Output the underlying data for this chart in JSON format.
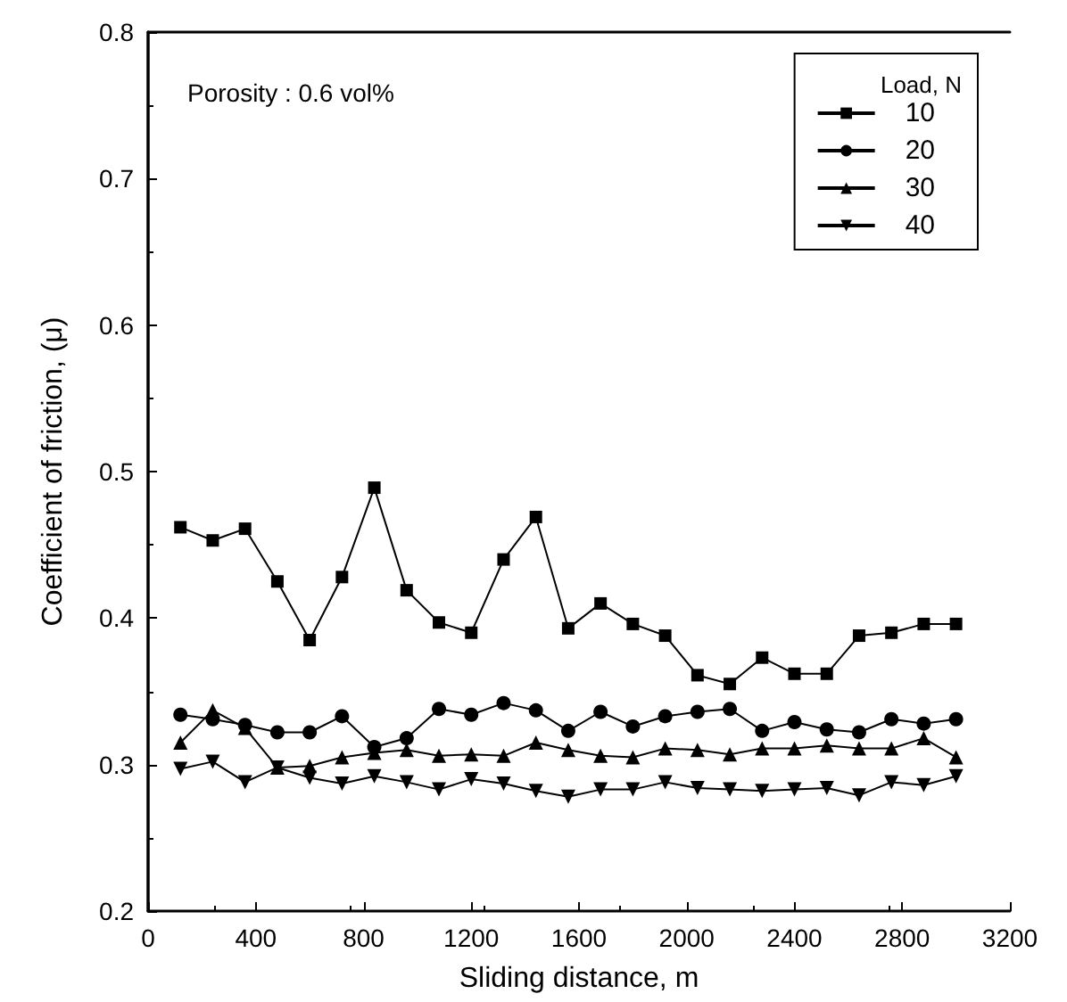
{
  "chart_data": {
    "type": "line",
    "xlabel": "Sliding distance, m",
    "ylabel": "Coefficient of friction, (μ)",
    "legend_title": "Load, N",
    "annotations": [
      "Porosity : 0.6 vol%"
    ],
    "x": [
      120,
      240,
      360,
      480,
      600,
      720,
      840,
      960,
      1080,
      1200,
      1320,
      1440,
      1560,
      1680,
      1800,
      1920,
      2040,
      2160,
      2280,
      2400,
      2520,
      2640,
      2760,
      2880,
      3000
    ],
    "series": [
      {
        "name": "10",
        "color": "#000000",
        "marker": "square",
        "values": [
          0.462,
          0.453,
          0.461,
          0.425,
          0.385,
          0.428,
          0.489,
          0.419,
          0.397,
          0.39,
          0.44,
          0.469,
          0.393,
          0.41,
          0.396,
          0.388,
          0.361,
          0.355,
          0.373,
          0.362,
          0.362,
          0.388,
          0.39,
          0.396,
          0.396
        ]
      },
      {
        "name": "20",
        "color": "#000000",
        "marker": "circle",
        "values": [
          0.334,
          0.331,
          0.327,
          0.322,
          0.322,
          0.333,
          0.312,
          0.318,
          0.338,
          0.334,
          0.342,
          0.337,
          0.323,
          0.336,
          0.326,
          0.333,
          0.336,
          0.338,
          0.323,
          0.329,
          0.324,
          0.322,
          0.331,
          0.328,
          0.331
        ]
      },
      {
        "name": "30",
        "color": "#000000",
        "marker": "triangle",
        "values": [
          0.315,
          0.337,
          0.325,
          0.298,
          0.299,
          0.305,
          0.308,
          0.31,
          0.306,
          0.307,
          0.306,
          0.315,
          0.31,
          0.306,
          0.305,
          0.311,
          0.31,
          0.307,
          0.311,
          0.311,
          0.313,
          0.311,
          0.311,
          0.318,
          0.305
        ]
      },
      {
        "name": "40",
        "color": "#000000",
        "marker": "triangle-down",
        "values": [
          0.297,
          0.302,
          0.288,
          0.298,
          0.291,
          0.287,
          0.292,
          0.288,
          0.283,
          0.29,
          0.287,
          0.282,
          0.278,
          0.283,
          0.283,
          0.288,
          0.284,
          0.283,
          0.282,
          0.283,
          0.284,
          0.279,
          0.288,
          0.286,
          0.292
        ]
      }
    ],
    "xlim": [
      0,
      3200
    ],
    "xticks": [
      0,
      400,
      800,
      1200,
      1600,
      2000,
      2400,
      2800,
      3200
    ],
    "ylim": [
      0.2,
      0.8
    ],
    "yticks": [
      0.2,
      0.3,
      0.4,
      0.5,
      0.6,
      0.7,
      0.8
    ],
    "grid": false,
    "legend": "top right",
    "line_style": "solid"
  }
}
